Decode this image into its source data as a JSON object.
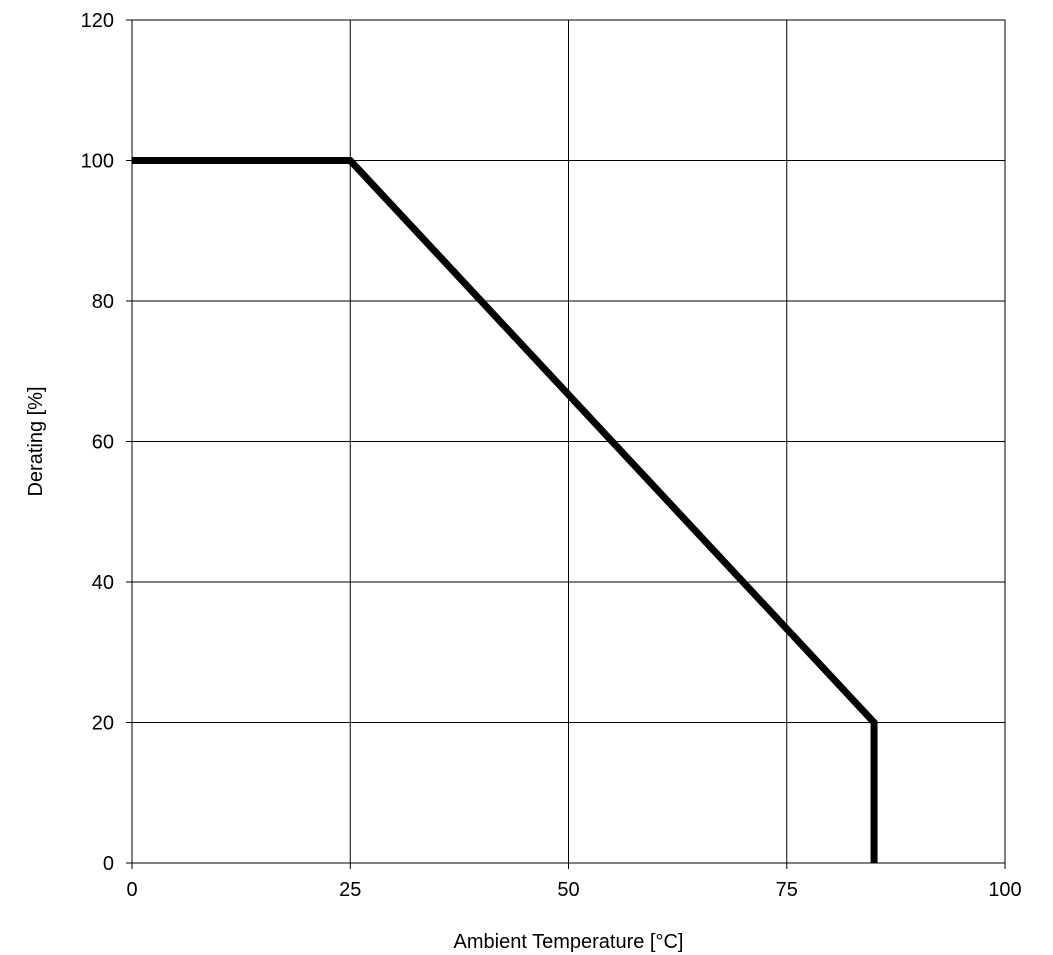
{
  "chart_data": {
    "type": "line",
    "title": "",
    "xlabel": "Ambient Temperature [°C]",
    "ylabel": "Derating [%]",
    "xlim": [
      0,
      100
    ],
    "ylim": [
      0,
      120
    ],
    "xticks": [
      0,
      25,
      50,
      75,
      100
    ],
    "yticks": [
      0,
      20,
      40,
      60,
      80,
      100,
      120
    ],
    "grid": true,
    "legend": "none",
    "series": [
      {
        "x": [
          0,
          25,
          85,
          85
        ],
        "y": [
          100,
          100,
          20,
          0
        ],
        "color": "#000000"
      }
    ]
  }
}
